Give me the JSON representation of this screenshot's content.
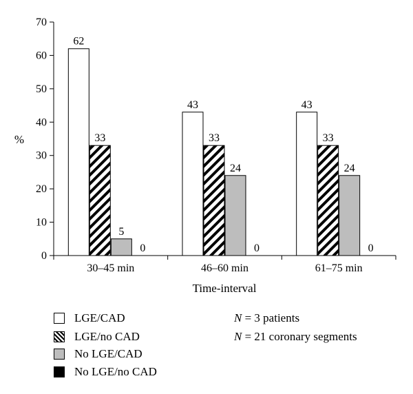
{
  "chart_data": {
    "type": "bar",
    "categories": [
      "30–45 min",
      "46–60 min",
      "61–75 min"
    ],
    "series": [
      {
        "name": "LGE/CAD",
        "values": [
          62,
          43,
          43
        ],
        "fill": "#ffffff",
        "pattern": "none"
      },
      {
        "name": "LGE/no CAD",
        "values": [
          33,
          33,
          33
        ],
        "fill": "#ffffff",
        "pattern": "diagonal-hatch"
      },
      {
        "name": "No LGE/CAD",
        "values": [
          5,
          24,
          24
        ],
        "fill": "#bdbdbd",
        "pattern": "none"
      },
      {
        "name": "No LGE/no CAD",
        "values": [
          0,
          0,
          0
        ],
        "fill": "#000000",
        "pattern": "none"
      }
    ],
    "data_labels": [
      "62",
      "33",
      "5",
      "0",
      "43",
      "33",
      "24",
      "0",
      "43",
      "33",
      "24",
      "0"
    ],
    "xlabel": "Time-interval",
    "ylabel": "%",
    "ylim": [
      0,
      70
    ],
    "yticks": [
      "0",
      "10",
      "20",
      "30",
      "40",
      "50",
      "60",
      "70"
    ],
    "grid": false,
    "legend_position": "bottom-left"
  },
  "notes": [
    {
      "var": "N",
      "text": " = 3 patients"
    },
    {
      "var": "N",
      "text": " = 21 coronary segments"
    }
  ]
}
